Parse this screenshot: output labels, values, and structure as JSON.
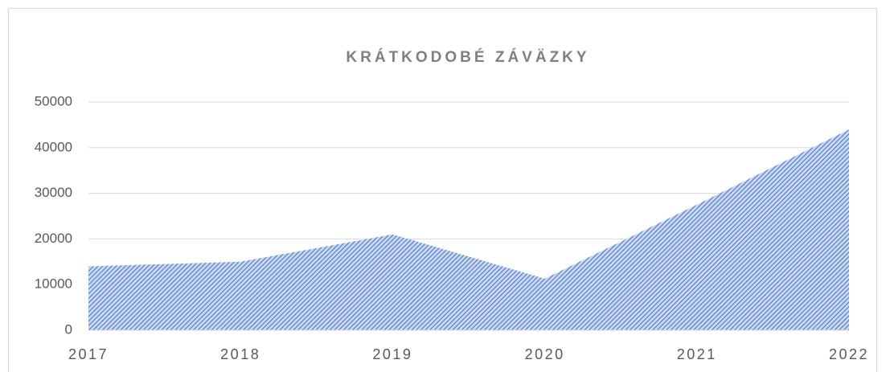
{
  "chart_data": {
    "type": "area",
    "title": "KRÁTKODOBÉ ZÁVÄZKY",
    "categories": [
      "2017",
      "2018",
      "2019",
      "2020",
      "2021",
      "2022"
    ],
    "values": [
      14000,
      15000,
      21000,
      11300,
      27500,
      44000
    ],
    "color": "#4472c4",
    "ylim": [
      0,
      50000
    ],
    "yticks": [
      0,
      10000,
      20000,
      30000,
      40000,
      50000
    ],
    "grid": true
  }
}
